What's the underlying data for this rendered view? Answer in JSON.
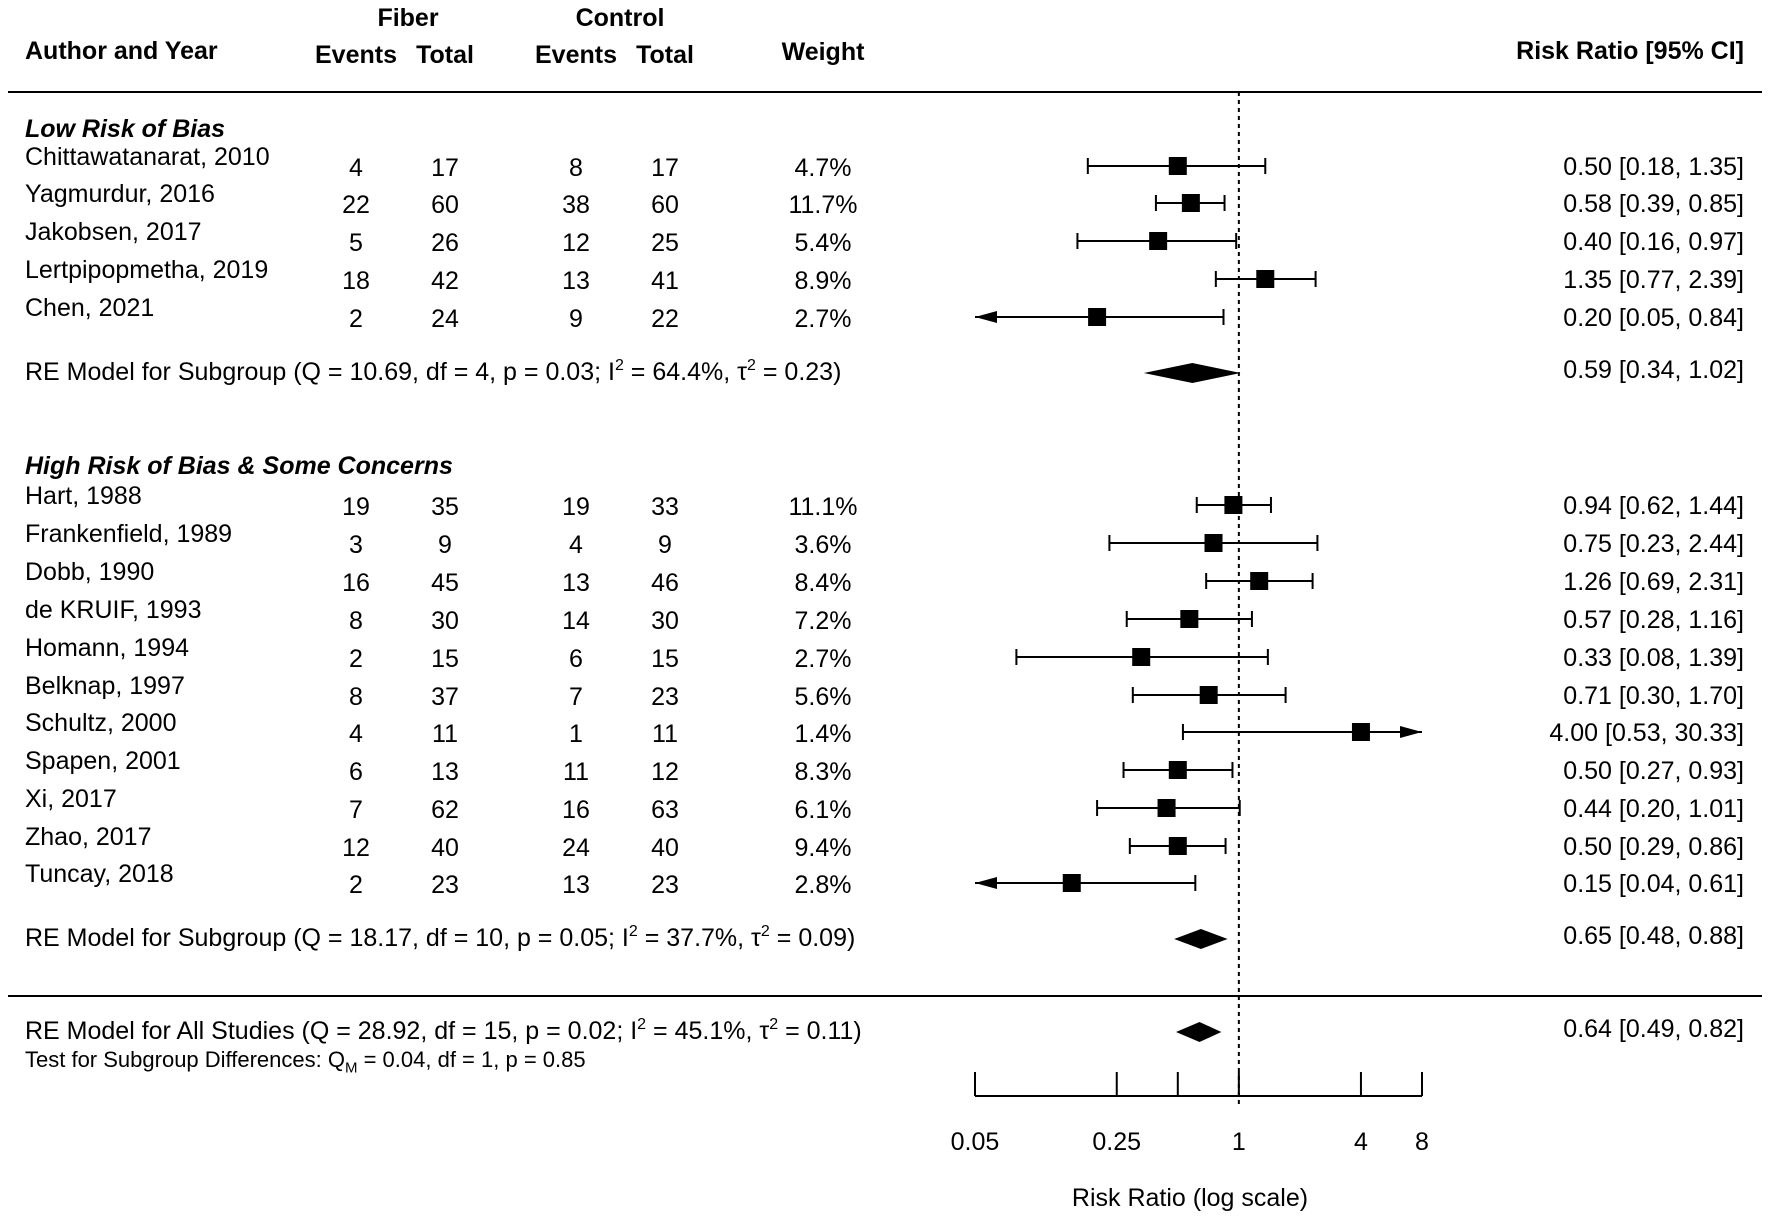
{
  "chart_data": {
    "type": "forest",
    "x_axis": {
      "label": "Risk Ratio (log scale)",
      "scale": "log",
      "range": [
        0.05,
        8
      ],
      "ticks": [
        0.05,
        0.25,
        0.5,
        1,
        4,
        8
      ],
      "tick_labels": [
        "0.05",
        "0.25",
        "",
        "1",
        "4",
        "8"
      ],
      "reference_line": 1
    },
    "header": {
      "author": "Author and Year",
      "fiber_group": "Fiber",
      "control_group": "Control",
      "events": "Events",
      "total": "Total",
      "weight": "Weight",
      "ratio": "Risk Ratio [95% CI]"
    },
    "subgroups": [
      {
        "title": "Low Risk of Bias",
        "studies": [
          {
            "author": "Chittawatanarat, 2010",
            "fe": "4",
            "ft": "17",
            "ce": "8",
            "ct": "17",
            "weight": "4.7%",
            "rr": 0.5,
            "lo": 0.18,
            "hi": 1.35,
            "ci_text": "0.50 [0.18,  1.35]"
          },
          {
            "author": "Yagmurdur, 2016",
            "fe": "22",
            "ft": "60",
            "ce": "38",
            "ct": "60",
            "weight": "11.7%",
            "rr": 0.58,
            "lo": 0.39,
            "hi": 0.85,
            "ci_text": "0.58 [0.39,  0.85]"
          },
          {
            "author": "Jakobsen, 2017",
            "fe": "5",
            "ft": "26",
            "ce": "12",
            "ct": "25",
            "weight": "5.4%",
            "rr": 0.4,
            "lo": 0.16,
            "hi": 0.97,
            "ci_text": "0.40 [0.16,  0.97]"
          },
          {
            "author": "Lertpipopmetha, 2019",
            "fe": "18",
            "ft": "42",
            "ce": "13",
            "ct": "41",
            "weight": "8.9%",
            "rr": 1.35,
            "lo": 0.77,
            "hi": 2.39,
            "ci_text": "1.35 [0.77,  2.39]"
          },
          {
            "author": "Chen, 2021",
            "fe": "2",
            "ft": "24",
            "ce": "9",
            "ct": "22",
            "weight": "2.7%",
            "rr": 0.2,
            "lo": 0.05,
            "hi": 0.84,
            "ci_text": "0.20 [0.05,  0.84]",
            "arrow_left": true
          }
        ],
        "model": {
          "label_main": "RE Model for Subgroup (Q = 10.69, df = 4, p = 0.03; I",
          "sup_1": "2",
          "label_mid": " = 64.4%, τ",
          "sup_2": "2",
          "label_end": " = 0.23)",
          "rr": 0.59,
          "lo": 0.34,
          "hi": 1.02,
          "ci_text": "0.59 [0.34,  1.02]"
        }
      },
      {
        "title": "High Risk of Bias & Some Concerns",
        "studies": [
          {
            "author": "Hart, 1988",
            "fe": "19",
            "ft": "35",
            "ce": "19",
            "ct": "33",
            "weight": "11.1%",
            "rr": 0.94,
            "lo": 0.62,
            "hi": 1.44,
            "ci_text": "0.94 [0.62,  1.44]"
          },
          {
            "author": "Frankenfield, 1989",
            "fe": "3",
            "ft": "9",
            "ce": "4",
            "ct": "9",
            "weight": "3.6%",
            "rr": 0.75,
            "lo": 0.23,
            "hi": 2.44,
            "ci_text": "0.75 [0.23,  2.44]"
          },
          {
            "author": "Dobb, 1990",
            "fe": "16",
            "ft": "45",
            "ce": "13",
            "ct": "46",
            "weight": "8.4%",
            "rr": 1.26,
            "lo": 0.69,
            "hi": 2.31,
            "ci_text": "1.26 [0.69,  2.31]"
          },
          {
            "author": "de KRUIF, 1993",
            "fe": "8",
            "ft": "30",
            "ce": "14",
            "ct": "30",
            "weight": "7.2%",
            "rr": 0.57,
            "lo": 0.28,
            "hi": 1.16,
            "ci_text": "0.57 [0.28,  1.16]"
          },
          {
            "author": "Homann, 1994",
            "fe": "2",
            "ft": "15",
            "ce": "6",
            "ct": "15",
            "weight": "2.7%",
            "rr": 0.33,
            "lo": 0.08,
            "hi": 1.39,
            "ci_text": "0.33 [0.08,  1.39]"
          },
          {
            "author": "Belknap, 1997",
            "fe": "8",
            "ft": "37",
            "ce": "7",
            "ct": "23",
            "weight": "5.6%",
            "rr": 0.71,
            "lo": 0.3,
            "hi": 1.7,
            "ci_text": "0.71 [0.30,  1.70]"
          },
          {
            "author": "Schultz, 2000",
            "fe": "4",
            "ft": "11",
            "ce": "1",
            "ct": "11",
            "weight": "1.4%",
            "rr": 4.0,
            "lo": 0.53,
            "hi": 30.33,
            "ci_text": "4.00 [0.53, 30.33]",
            "arrow_right": true
          },
          {
            "author": "Spapen, 2001",
            "fe": "6",
            "ft": "13",
            "ce": "11",
            "ct": "12",
            "weight": "8.3%",
            "rr": 0.5,
            "lo": 0.27,
            "hi": 0.93,
            "ci_text": "0.50 [0.27,  0.93]"
          },
          {
            "author": "Xi, 2017",
            "fe": "7",
            "ft": "62",
            "ce": "16",
            "ct": "63",
            "weight": "6.1%",
            "rr": 0.44,
            "lo": 0.2,
            "hi": 1.01,
            "ci_text": "0.44 [0.20,  1.01]"
          },
          {
            "author": "Zhao, 2017",
            "fe": "12",
            "ft": "40",
            "ce": "24",
            "ct": "40",
            "weight": "9.4%",
            "rr": 0.5,
            "lo": 0.29,
            "hi": 0.86,
            "ci_text": "0.50 [0.29,  0.86]"
          },
          {
            "author": "Tuncay, 2018",
            "fe": "2",
            "ft": "23",
            "ce": "13",
            "ct": "23",
            "weight": "2.8%",
            "rr": 0.15,
            "lo": 0.04,
            "hi": 0.61,
            "ci_text": "0.15 [0.04,  0.61]",
            "arrow_left": true
          }
        ],
        "model": {
          "label_main": "RE Model for Subgroup (Q = 18.17, df = 10, p = 0.05; I",
          "sup_1": "2",
          "label_mid": " = 37.7%, τ",
          "sup_2": "2",
          "label_end": " = 0.09)",
          "rr": 0.65,
          "lo": 0.48,
          "hi": 0.88,
          "ci_text": "0.65 [0.48,  0.88]"
        }
      }
    ],
    "overall": {
      "label_main": "RE Model for All Studies (Q = 28.92, df = 15, p = 0.02; I",
      "sup_1": "2",
      "label_mid": " = 45.1%, τ",
      "sup_2": "2",
      "label_end": " = 0.11)",
      "rr": 0.64,
      "lo": 0.49,
      "hi": 0.82,
      "ci_text": "0.64 [0.49,  0.82]",
      "test_main": "Test for Subgroup Differences: Q",
      "test_sub": "M",
      "test_end": " = 0.04, df = 1, p = 0.85"
    }
  }
}
